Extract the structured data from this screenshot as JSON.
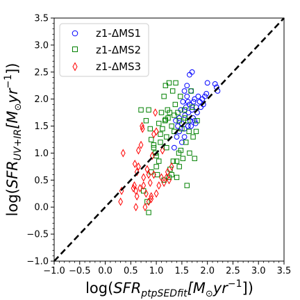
{
  "chart_data": {
    "type": "scatter",
    "title": "",
    "xlabel": "log(SFR_ptpSEDfit[M_⊙yr^-1])",
    "ylabel": "log(SFR_UV+IR[M_⊙yr^-1])",
    "xlabel_parts": {
      "pre": "log(",
      "main": "SFR",
      "sub": "ptpSEDfit",
      "bracket": "[M",
      "sun": "⊙",
      "unit": "yr",
      "sup": "−1",
      "post": "])"
    },
    "ylabel_parts": {
      "pre": "log(",
      "main": "SFR",
      "sub": "UV+IR",
      "bracket": "[M",
      "sun": "⊙",
      "unit": "yr",
      "sup": "−1",
      "post": "])"
    },
    "xlim": [
      -1.0,
      3.5
    ],
    "ylim": [
      -1.0,
      3.5
    ],
    "xticks": [
      "−1.0",
      "−0.5",
      "0.0",
      "0.5",
      "1.0",
      "1.5",
      "2.0",
      "2.5",
      "3.0",
      "3.5"
    ],
    "yticks": [
      "−1.0",
      "−0.5",
      "0.0",
      "0.5",
      "1.0",
      "1.5",
      "2.0",
      "2.5",
      "3.0",
      "3.5"
    ],
    "grid": false,
    "legend_position": "upper-left",
    "one_to_one_line": {
      "x": [
        -1.0,
        3.5
      ],
      "y": [
        -1.0,
        3.5
      ],
      "style": "dashed",
      "color": "#000000"
    },
    "series": [
      {
        "name": "z1-ΔMS1",
        "marker": "circle",
        "color": "#0000ff",
        "points": [
          [
            1.35,
            1.1
          ],
          [
            1.4,
            1.3
          ],
          [
            1.42,
            1.5
          ],
          [
            1.45,
            1.65
          ],
          [
            1.48,
            1.8
          ],
          [
            1.5,
            1.55
          ],
          [
            1.52,
            1.95
          ],
          [
            1.55,
            1.45
          ],
          [
            1.56,
            1.7
          ],
          [
            1.58,
            1.85
          ],
          [
            1.6,
            2.05
          ],
          [
            1.62,
            1.5
          ],
          [
            1.63,
            1.75
          ],
          [
            1.65,
            1.9
          ],
          [
            1.66,
            1.6
          ],
          [
            1.68,
            2.15
          ],
          [
            1.7,
            1.8
          ],
          [
            1.72,
            1.65
          ],
          [
            1.73,
            1.95
          ],
          [
            1.75,
            2.0
          ],
          [
            1.77,
            1.55
          ],
          [
            1.78,
            1.85
          ],
          [
            1.8,
            1.75
          ],
          [
            1.82,
            2.05
          ],
          [
            1.85,
            1.95
          ],
          [
            1.87,
            1.85
          ],
          [
            1.9,
            2.0
          ],
          [
            1.92,
            1.9
          ],
          [
            1.95,
            2.05
          ],
          [
            1.98,
            2.1
          ],
          [
            1.55,
            2.15
          ],
          [
            1.6,
            2.25
          ],
          [
            1.65,
            2.45
          ],
          [
            1.7,
            2.5
          ],
          [
            1.55,
            1.3
          ],
          [
            1.5,
            1.2
          ],
          [
            1.45,
            1.4
          ],
          [
            1.38,
            1.6
          ],
          [
            2.0,
            2.3
          ],
          [
            2.15,
            2.28
          ],
          [
            2.2,
            2.15
          ],
          [
            2.18,
            2.22
          ],
          [
            1.75,
            1.6
          ],
          [
            1.68,
            1.5
          ],
          [
            1.62,
            1.95
          ]
        ]
      },
      {
        "name": "z1-ΔMS2",
        "marker": "square",
        "color": "#008000",
        "points": [
          [
            0.7,
            1.8
          ],
          [
            0.8,
            1.6
          ],
          [
            0.85,
            1.8
          ],
          [
            0.88,
            1.45
          ],
          [
            0.9,
            1.25
          ],
          [
            0.95,
            1.1
          ],
          [
            0.98,
            1.0
          ],
          [
            1.0,
            0.75
          ],
          [
            1.02,
            0.6
          ],
          [
            1.05,
            1.55
          ],
          [
            1.08,
            1.2
          ],
          [
            1.1,
            1.75
          ],
          [
            1.12,
            1.45
          ],
          [
            1.15,
            2.05
          ],
          [
            1.17,
            1.6
          ],
          [
            1.18,
            2.25
          ],
          [
            1.2,
            1.3
          ],
          [
            1.22,
            1.8
          ],
          [
            1.23,
            1.65
          ],
          [
            1.25,
            2.3
          ],
          [
            1.27,
            0.7
          ],
          [
            1.3,
            1.5
          ],
          [
            1.32,
            2.15
          ],
          [
            1.33,
            0.85
          ],
          [
            1.35,
            1.4
          ],
          [
            1.37,
            1.9
          ],
          [
            1.38,
            2.3
          ],
          [
            1.4,
            0.55
          ],
          [
            1.42,
            1.75
          ],
          [
            1.44,
            1.0
          ],
          [
            1.45,
            1.6
          ],
          [
            1.47,
            2.05
          ],
          [
            1.5,
            1.45
          ],
          [
            1.52,
            0.9
          ],
          [
            1.55,
            1.8
          ],
          [
            1.58,
            1.2
          ],
          [
            1.6,
            0.4
          ],
          [
            1.62,
            1.6
          ],
          [
            1.65,
            1.0
          ],
          [
            1.68,
            2.15
          ],
          [
            1.7,
            1.85
          ],
          [
            1.72,
            1.3
          ],
          [
            1.75,
            0.9
          ],
          [
            1.78,
            1.4
          ],
          [
            1.8,
            1.6
          ],
          [
            0.75,
            0.3
          ],
          [
            0.82,
            0.1
          ],
          [
            0.85,
            -0.1
          ],
          [
            0.95,
            1.15
          ],
          [
            1.05,
            0.85
          ],
          [
            1.15,
            0.5
          ],
          [
            1.25,
            0.55
          ],
          [
            1.35,
            1.7
          ],
          [
            1.45,
            0.75
          ],
          [
            0.9,
            0.65
          ],
          [
            1.0,
            0.95
          ],
          [
            1.2,
            1.1
          ],
          [
            1.3,
            0.6
          ],
          [
            1.4,
            0.85
          ],
          [
            1.48,
            1.05
          ],
          [
            1.56,
            1.65
          ],
          [
            1.64,
            1.4
          ],
          [
            1.26,
            1.75
          ],
          [
            1.18,
            1.62
          ],
          [
            1.08,
            1.35
          ]
        ]
      },
      {
        "name": "z1-ΔMS3",
        "marker": "diamond",
        "color": "#ff0000",
        "points": [
          [
            0.3,
            0.1
          ],
          [
            0.32,
            0.3
          ],
          [
            0.35,
            1.0
          ],
          [
            0.55,
            0.35
          ],
          [
            0.57,
            0.4
          ],
          [
            0.6,
            0.3
          ],
          [
            0.6,
            0.0
          ],
          [
            0.62,
            0.2
          ],
          [
            0.65,
            0.75
          ],
          [
            0.68,
            0.35
          ],
          [
            0.7,
            1.15
          ],
          [
            0.72,
            1.5
          ],
          [
            0.73,
            1.45
          ],
          [
            0.75,
            0.55
          ],
          [
            0.78,
            0.0
          ],
          [
            0.8,
            0.25
          ],
          [
            0.82,
            0.7
          ],
          [
            0.85,
            0.6
          ],
          [
            0.88,
            0.45
          ],
          [
            0.9,
            0.2
          ],
          [
            0.92,
            0.95
          ],
          [
            0.95,
            1.35
          ],
          [
            0.98,
            1.75
          ],
          [
            1.0,
            0.25
          ],
          [
            1.05,
            0.4
          ],
          [
            1.1,
            0.55
          ],
          [
            1.15,
            0.45
          ],
          [
            1.2,
            0.55
          ],
          [
            1.22,
            0.65
          ],
          [
            1.25,
            0.5
          ],
          [
            1.3,
            0.75
          ],
          [
            0.58,
            0.8
          ],
          [
            0.62,
            0.65
          ],
          [
            0.85,
            0.1
          ],
          [
            0.9,
            0.15
          ],
          [
            0.95,
            0.6
          ],
          [
            1.0,
            1.4
          ],
          [
            1.12,
            1.05
          ],
          [
            0.65,
            1.05
          ],
          [
            0.75,
            0.4
          ]
        ]
      }
    ]
  }
}
